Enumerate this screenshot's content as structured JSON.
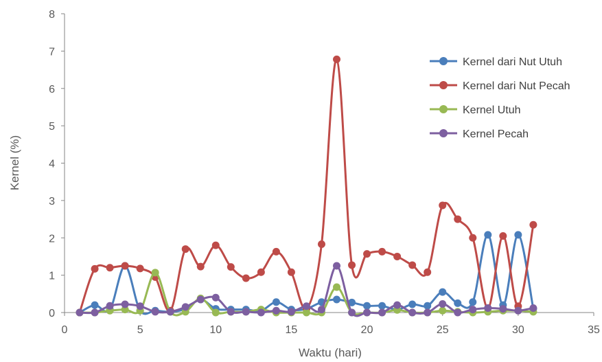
{
  "chart_data": {
    "type": "line",
    "title": "",
    "xlabel": "Waktu (hari)",
    "ylabel": "Kernel (%)",
    "xlim": [
      0,
      35
    ],
    "ylim": [
      0,
      8
    ],
    "xticks": [
      0,
      5,
      10,
      15,
      20,
      25,
      30,
      35
    ],
    "yticks": [
      0,
      1,
      2,
      3,
      4,
      5,
      6,
      7,
      8
    ],
    "smooth": true,
    "grid": false,
    "legend_position": "top-right",
    "x": [
      1,
      2,
      3,
      4,
      5,
      6,
      7,
      8,
      9,
      10,
      11,
      12,
      13,
      14,
      15,
      16,
      17,
      18,
      19,
      20,
      21,
      22,
      23,
      24,
      25,
      26,
      27,
      28,
      29,
      30,
      31
    ],
    "series": [
      {
        "name": "Kernel dari Nut Utuh",
        "color": "#4a7ebb",
        "values": [
          0,
          0.2,
          0.08,
          1.25,
          0.05,
          0.05,
          0.02,
          0.1,
          0.35,
          0.1,
          0.08,
          0.08,
          0.05,
          0.28,
          0.08,
          0.1,
          0.28,
          0.35,
          0.27,
          0.18,
          0.18,
          0.08,
          0.22,
          0.18,
          0.55,
          0.25,
          0.28,
          2.08,
          0.2,
          2.08,
          0.1
        ]
      },
      {
        "name": "Kernel dari Nut Pecah",
        "color": "#be4b48",
        "values": [
          0,
          1.17,
          1.2,
          1.25,
          1.18,
          0.95,
          0.05,
          1.7,
          1.23,
          1.8,
          1.22,
          0.92,
          1.08,
          1.63,
          1.08,
          0.1,
          1.83,
          6.78,
          1.27,
          1.57,
          1.63,
          1.5,
          1.27,
          1.08,
          2.87,
          2.5,
          2.0,
          0.12,
          2.05,
          0.17,
          2.35
        ]
      },
      {
        "name": "Kernel Utuh",
        "color": "#98b954",
        "values": [
          0,
          0,
          0.05,
          0.08,
          0.05,
          1.07,
          0.02,
          0.02,
          0.38,
          0,
          0.02,
          0.02,
          0.08,
          0,
          0,
          0,
          0,
          0.68,
          0,
          0,
          0,
          0.07,
          0,
          0,
          0.05,
          0.02,
          0,
          0.02,
          0.05,
          0.05,
          0.02
        ]
      },
      {
        "name": "Kernel Pecah",
        "color": "#7d5fa0",
        "values": [
          0,
          0,
          0.18,
          0.22,
          0.17,
          0.02,
          0.02,
          0.15,
          0.35,
          0.4,
          0.02,
          0.02,
          0,
          0.05,
          0.02,
          0.17,
          0.08,
          1.25,
          0,
          0,
          0,
          0.2,
          0,
          0,
          0.23,
          0,
          0.08,
          0.12,
          0.1,
          0.05,
          0.12
        ]
      }
    ]
  }
}
